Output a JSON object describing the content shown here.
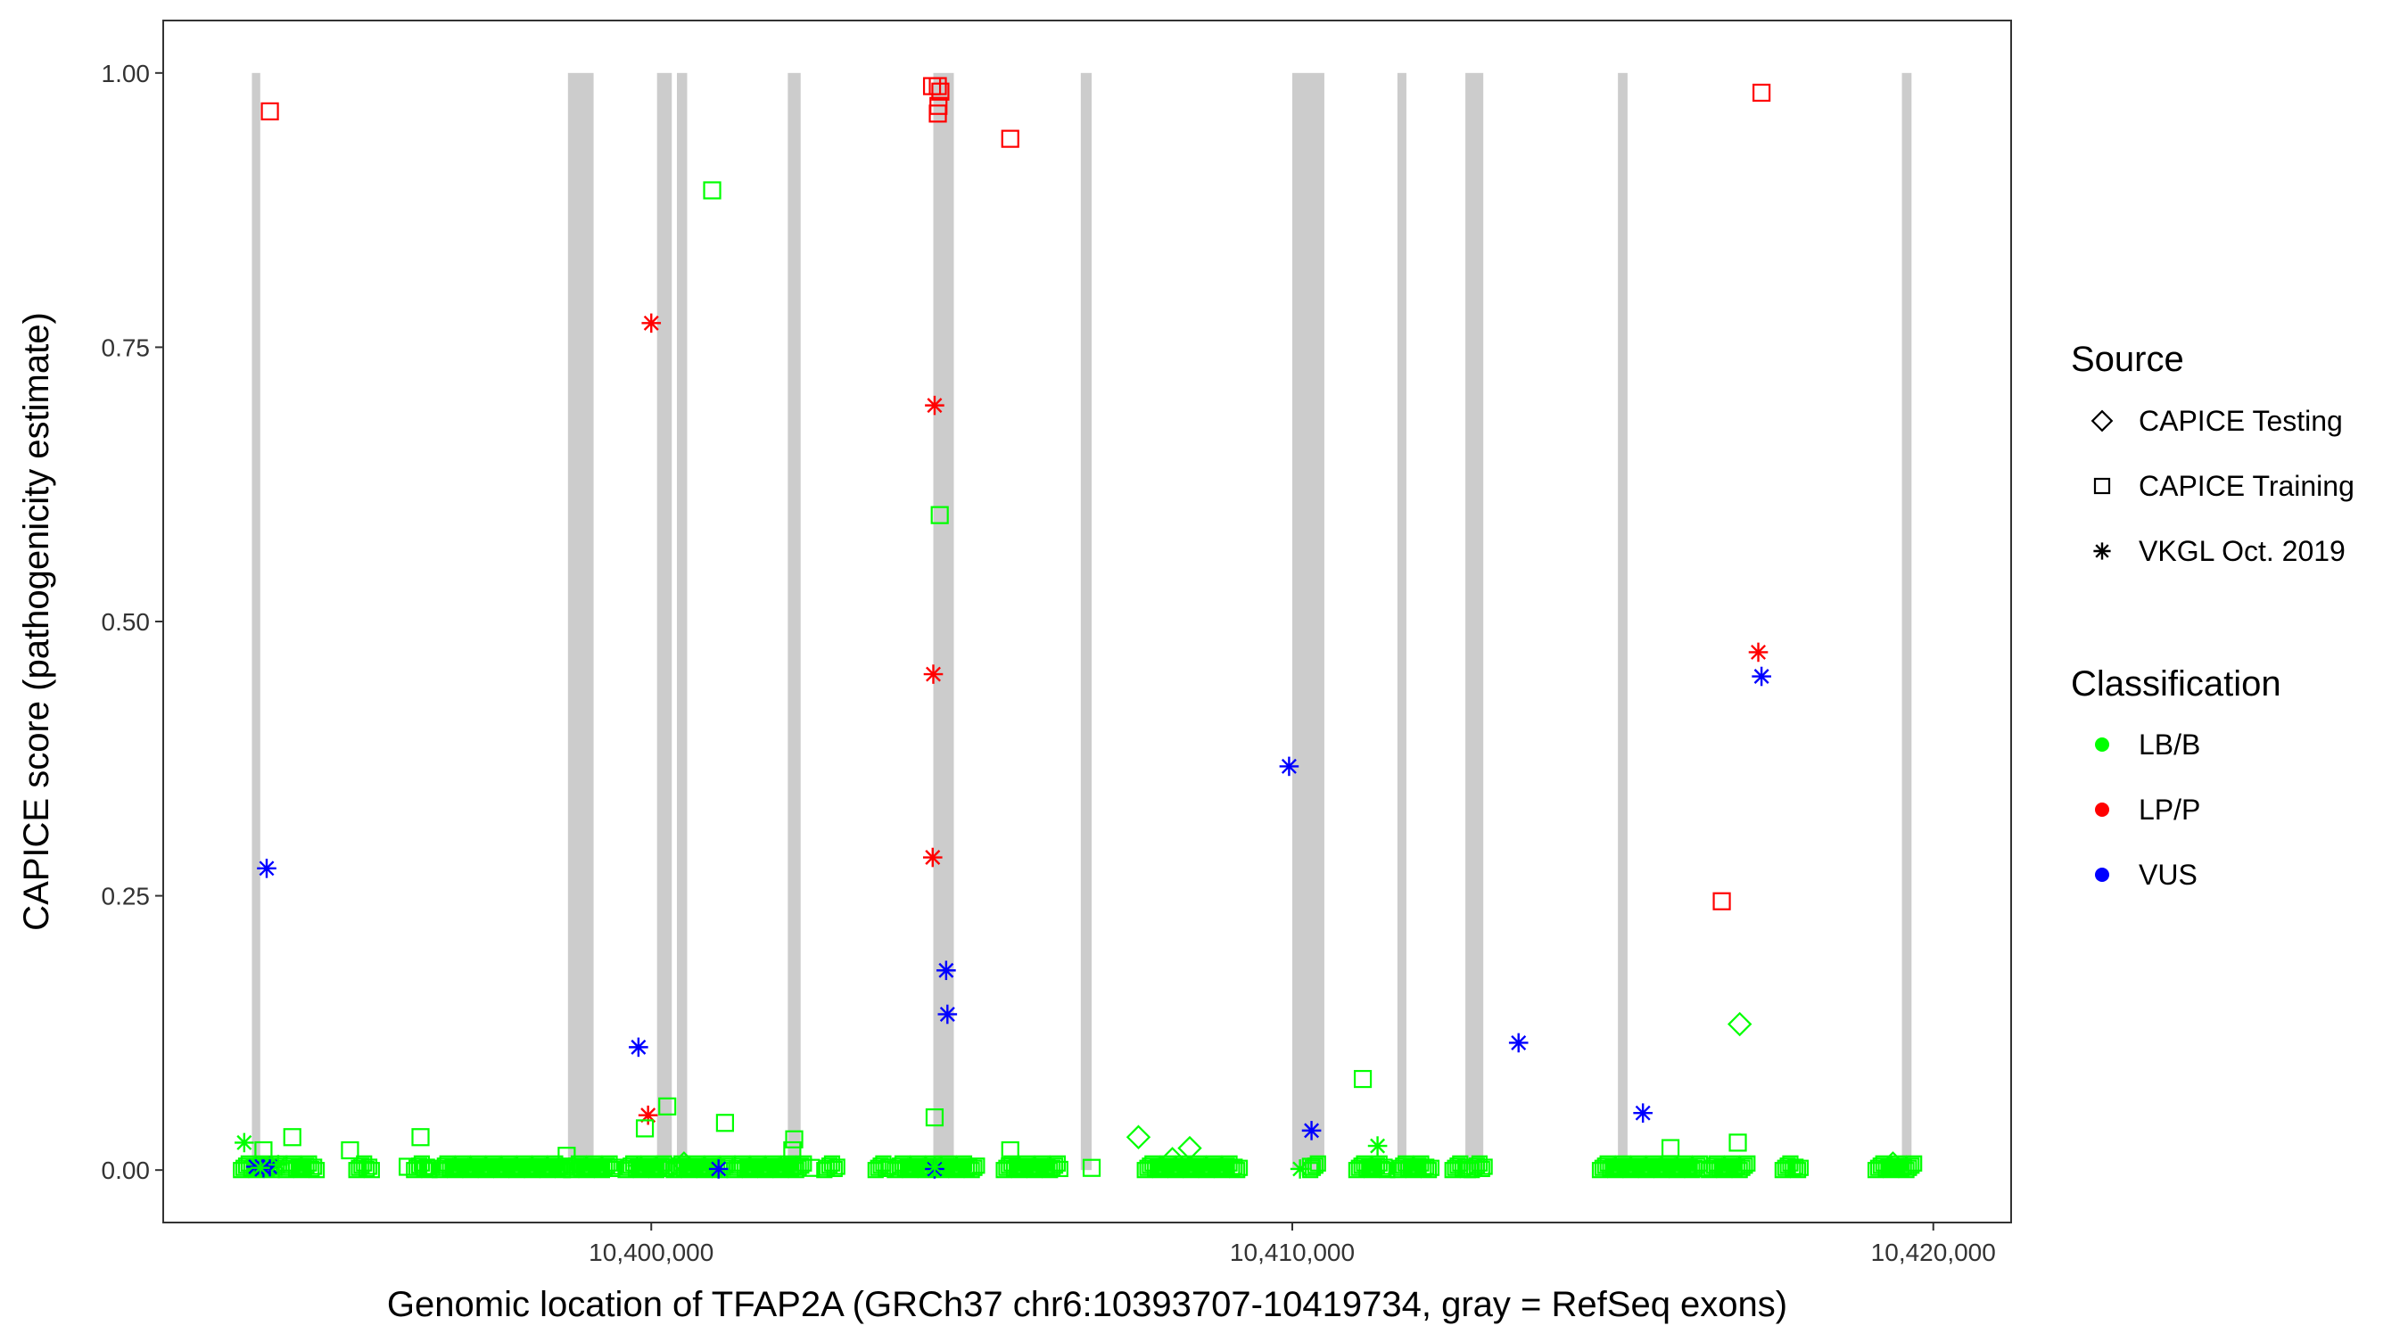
{
  "chart_data": {
    "type": "scatter",
    "xlabel": "Genomic location of TFAP2A (GRCh37 chr6:10393707-10419734, gray = RefSeq exons)",
    "ylabel": "CAPICE score (pathogenicity estimate)",
    "xlim": [
      10392400,
      10421200
    ],
    "ylim": [
      -0.047,
      1.047
    ],
    "x_ticks": [
      10400000,
      10410000,
      10420000
    ],
    "x_tick_labels": [
      "10,400,000",
      "10,410,000",
      "10,420,000"
    ],
    "y_ticks": [
      0,
      0.25,
      0.5,
      0.75,
      1.0
    ],
    "y_tick_labels": [
      "0.00",
      "0.25",
      "0.50",
      "0.75",
      "1.00"
    ],
    "grid": false,
    "exons": [
      [
        10393770,
        10393900
      ],
      [
        10398700,
        10399100
      ],
      [
        10400090,
        10400320
      ],
      [
        10400400,
        10400560
      ],
      [
        10402130,
        10402330
      ],
      [
        10404400,
        10404720
      ],
      [
        10406700,
        10406870
      ],
      [
        10410000,
        10410500
      ],
      [
        10411640,
        10411780
      ],
      [
        10412700,
        10412980
      ],
      [
        10415080,
        10415230
      ],
      [
        10419510,
        10419660
      ]
    ],
    "legends": {
      "source": {
        "title": "Source",
        "items": [
          {
            "label": "CAPICE Testing",
            "shape": "diamond"
          },
          {
            "label": "CAPICE Training",
            "shape": "square"
          },
          {
            "label": "VKGL Oct. 2019",
            "shape": "asterisk"
          }
        ]
      },
      "classification": {
        "title": "Classification",
        "items": [
          {
            "label": "LB/B",
            "color": "#00ff00"
          },
          {
            "label": "LP/P",
            "color": "#ff0000"
          },
          {
            "label": "VUS",
            "color": "#0000ff"
          }
        ]
      }
    },
    "series": [
      {
        "name": "CAPICE Training",
        "shape": "square",
        "color": "#ff0000",
        "class": "LP/P",
        "x": [
          10394050,
          10404380,
          10404470,
          10404510,
          10404470,
          10404480,
          10405600,
          10417320,
          10416700
        ],
        "y": [
          0.965,
          0.988,
          0.988,
          0.983,
          0.963,
          0.97,
          0.94,
          0.982,
          0.245
        ]
      },
      {
        "name": "VKGL Oct. 2019",
        "shape": "asterisk",
        "color": "#ff0000",
        "class": "LP/P",
        "x": [
          10400000,
          10404420,
          10404400,
          10404390,
          10399950
        ],
        "y": [
          0.772,
          0.697,
          0.452,
          0.285,
          0.05
        ]
      },
      {
        "name": "VKGL Oct. 2019",
        "shape": "asterisk",
        "color": "#ff0000",
        "class": "LP/P",
        "x": [
          10417270
        ],
        "y": [
          0.472
        ]
      },
      {
        "name": "VKGL Oct. 2019",
        "shape": "asterisk",
        "color": "#0000ff",
        "class": "VUS",
        "x": [
          10394000,
          10399800,
          10404600,
          10404620,
          10409950,
          10410300,
          10413530,
          10415470,
          10417320,
          10393830,
          10393950,
          10394050,
          10401050,
          10404420
        ],
        "y": [
          0.275,
          0.112,
          0.182,
          0.142,
          0.368,
          0.036,
          0.116,
          0.052,
          0.45,
          0.003,
          0.002,
          0.003,
          0.001,
          0.001
        ]
      },
      {
        "name": "CAPICE Training",
        "shape": "square",
        "color": "#00ff00",
        "class": "LB/B",
        "x": [
          10400950,
          10404500,
          10394400,
          10400250,
          10399900,
          10401150,
          10402230,
          10402200,
          10404420,
          10405600,
          10393950,
          10395300,
          10396400,
          10398680,
          10396200,
          10411100,
          10416950,
          10415900,
          10406870,
          10410290,
          10402490
        ],
        "y": [
          0.893,
          0.597,
          0.03,
          0.058,
          0.038,
          0.043,
          0.028,
          0.018,
          0.048,
          0.018,
          0.018,
          0.018,
          0.03,
          0.013,
          0.003,
          0.083,
          0.025,
          0.02,
          0.002,
          0.003,
          0.002
        ]
      },
      {
        "name": "CAPICE Testing",
        "shape": "diamond",
        "color": "#00ff00",
        "class": "LB/B",
        "x": [
          10416980,
          10407600,
          10408400,
          10408130,
          10419370,
          10400510
        ],
        "y": [
          0.133,
          0.03,
          0.02,
          0.01,
          0.006,
          0.006
        ]
      },
      {
        "name": "VKGL Oct. 2019",
        "shape": "asterisk",
        "color": "#00ff00",
        "class": "LB/B",
        "x": [
          10393650,
          10411330,
          10410120,
          10404420,
          10393900,
          10394180,
          10399780
        ],
        "y": [
          0.025,
          0.022,
          0.001,
          0.003,
          0.002,
          0.005,
          0.004
        ]
      }
    ],
    "baseline_clusters": {
      "shape": "square",
      "color": "#00ff00",
      "class": "LB/B",
      "y_values": [
        0.0,
        0.002,
        0.004,
        0.006,
        0.001,
        0.003
      ],
      "ranges": [
        [
          10393600,
          10394200
        ],
        [
          10394300,
          10394800
        ],
        [
          10395400,
          10395650
        ],
        [
          10396300,
          10396600
        ],
        [
          10396700,
          10398700
        ],
        [
          10398750,
          10399450
        ],
        [
          10399600,
          10400300
        ],
        [
          10400350,
          10401200
        ],
        [
          10401300,
          10402400
        ],
        [
          10402700,
          10402900
        ],
        [
          10403500,
          10403700
        ],
        [
          10403800,
          10405100
        ],
        [
          10405500,
          10406400
        ],
        [
          10407700,
          10409200
        ],
        [
          10410280,
          10410420
        ],
        [
          10411000,
          10411500
        ],
        [
          10411650,
          10412200
        ],
        [
          10412500,
          10412750
        ],
        [
          10412800,
          10413000
        ],
        [
          10414800,
          10416400
        ],
        [
          10416500,
          10417100
        ],
        [
          10417650,
          10417950
        ],
        [
          10419100,
          10419700
        ]
      ]
    }
  }
}
